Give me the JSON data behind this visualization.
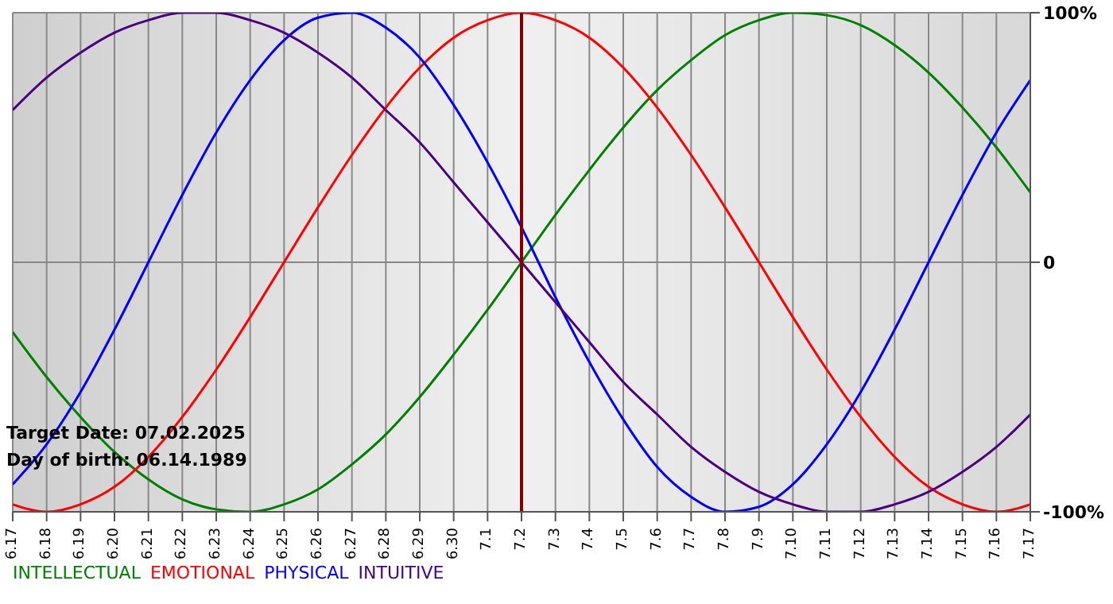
{
  "chart_data": {
    "type": "line",
    "categories": [
      "6.17",
      "6.18",
      "6.19",
      "6.20",
      "6.21",
      "6.22",
      "6.23",
      "6.24",
      "6.25",
      "6.26",
      "6.27",
      "6.28",
      "6.29",
      "6.30",
      "7.1",
      "7.2",
      "7.3",
      "7.4",
      "7.5",
      "7.6",
      "7.7",
      "7.8",
      "7.9",
      "7.10",
      "7.11",
      "7.12",
      "7.13",
      "7.14",
      "7.15",
      "7.16",
      "7.17"
    ],
    "series": [
      {
        "name": "INTELLECTUAL",
        "color": "#008000",
        "values": [
          -28,
          -46,
          -62,
          -76,
          -87,
          -95,
          -99,
          -100,
          -97,
          -91,
          -81,
          -69,
          -54,
          -37,
          -19,
          0,
          19,
          37,
          54,
          69,
          81,
          91,
          97,
          100,
          99,
          95,
          87,
          76,
          62,
          46,
          28
        ]
      },
      {
        "name": "EMOTIONAL",
        "color": "#ff0000",
        "values": [
          -97,
          -100,
          -97,
          -90,
          -78,
          -62,
          -43,
          -22,
          0,
          22,
          43,
          62,
          78,
          90,
          97,
          100,
          97,
          90,
          78,
          62,
          43,
          22,
          0,
          -22,
          -43,
          -62,
          -78,
          -90,
          -97,
          -100,
          -97
        ]
      },
      {
        "name": "PHYSICAL",
        "color": "#0000ff",
        "values": [
          -89,
          -73,
          -52,
          -27,
          0,
          27,
          52,
          73,
          89,
          98,
          100,
          94,
          82,
          63,
          40,
          14,
          -14,
          -40,
          -63,
          -82,
          -94,
          -100,
          -98,
          -89,
          -73,
          -52,
          -27,
          0,
          27,
          52,
          73
        ]
      },
      {
        "name": "INTUITIVE",
        "color": "#4b0082",
        "values": [
          61,
          74,
          84,
          92,
          97,
          100,
          100,
          97,
          92,
          84,
          74,
          61,
          48,
          32,
          16,
          0,
          -16,
          -32,
          -48,
          -61,
          -74,
          -84,
          -92,
          -97,
          -100,
          -100,
          -97,
          -92,
          -84,
          -74,
          -61
        ]
      }
    ],
    "ylim": [
      -100,
      100
    ],
    "yticks": [
      {
        "value": 100,
        "label": "100%"
      },
      0,
      {
        "value": -100,
        "label": "-100%"
      }
    ],
    "ref_lines": [
      {
        "axis": "x",
        "value": "7.2",
        "color": "#800000"
      }
    ],
    "annotations": [
      "Target Date: 07.02.2025",
      "Day of birth: 06.14.1989"
    ],
    "grid": true,
    "legend": "bottom left",
    "marker": "none",
    "line_style": "solid"
  }
}
